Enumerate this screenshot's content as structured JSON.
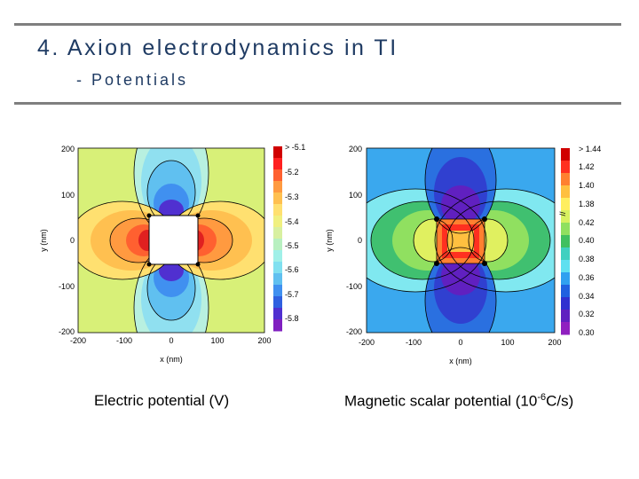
{
  "slide": {
    "title": "4. Axion electrodynamics in TI",
    "subtitle": "- Potentials"
  },
  "left_plot": {
    "caption": "Electric potential (V)",
    "xlabel": "x (nm)",
    "ylabel": "y (nm)",
    "x_ticks": [
      "-200",
      "-100",
      "0",
      "100",
      "200"
    ],
    "y_ticks": [
      "200",
      "100",
      "0",
      "-100",
      "-200"
    ],
    "colorbar": {
      "labels": [
        "> -5.1",
        "-5.2",
        "-5.3",
        "-5.4",
        "-5.5",
        "-5.6",
        "-5.7",
        "-5.8"
      ],
      "colors": [
        "#d00000",
        "#ff2020",
        "#ff6030",
        "#ff9a40",
        "#ffc050",
        "#ffe070",
        "#f0f080",
        "#d8f0a0",
        "#b8f0c0",
        "#a0f0e8",
        "#80e0f0",
        "#60c0f0",
        "#4090f0",
        "#3060e0",
        "#5030d0",
        "#8020c0"
      ]
    }
  },
  "right_plot": {
    "caption_main": "Magnetic scalar potential (10",
    "caption_exp": "-6",
    "caption_unit": "C/s)",
    "xlabel": "x (nm)",
    "ylabel": "y (nm)",
    "x_ticks": [
      "-200",
      "-100",
      "0",
      "100",
      "200"
    ],
    "y_ticks": [
      "200",
      "100",
      "0",
      "-100",
      "-200"
    ],
    "colorbar": {
      "labels": [
        "> 1.44",
        "1.42",
        "1.40",
        "1.38",
        "0.42",
        "0.40",
        "0.38",
        "0.36",
        "0.34",
        "0.32",
        "0.30"
      ],
      "break_mark": "//",
      "colors": [
        "#d00000",
        "#ff3020",
        "#ff8030",
        "#ffc040",
        "#ffee60",
        "#d8f060",
        "#90e060",
        "#40c060",
        "#40d0c0",
        "#60e0f0",
        "#30a0f0",
        "#2060e0",
        "#3030d0",
        "#6020c0",
        "#9020c0"
      ]
    }
  }
}
